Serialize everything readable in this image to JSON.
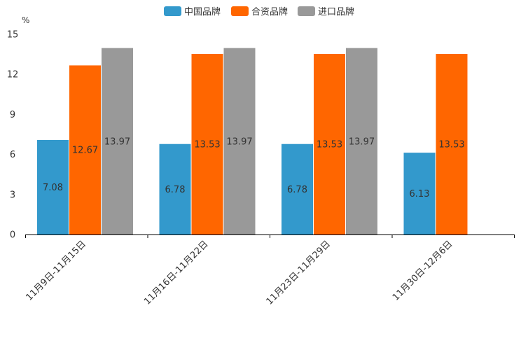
{
  "chart_data": {
    "type": "bar",
    "title": "",
    "ylabel": "%",
    "xlabel": "",
    "ylim": [
      0,
      15
    ],
    "yticks": [
      0,
      3,
      6,
      9,
      12,
      15
    ],
    "legend_position": "top-center",
    "grid": false,
    "categories": [
      "11月9日-11月15日",
      "11月16日-11月22日",
      "11月23日-11月29日",
      "11月30日-12月6日"
    ],
    "series": [
      {
        "name": "中国品牌",
        "color": "#3399CC",
        "values": [
          7.08,
          6.78,
          6.78,
          6.13
        ]
      },
      {
        "name": "合资品牌",
        "color": "#FF6600",
        "values": [
          12.67,
          13.53,
          13.53,
          13.53
        ]
      },
      {
        "name": "进口品牌",
        "color": "#999999",
        "values": [
          13.97,
          13.97,
          13.97,
          null
        ]
      }
    ]
  }
}
